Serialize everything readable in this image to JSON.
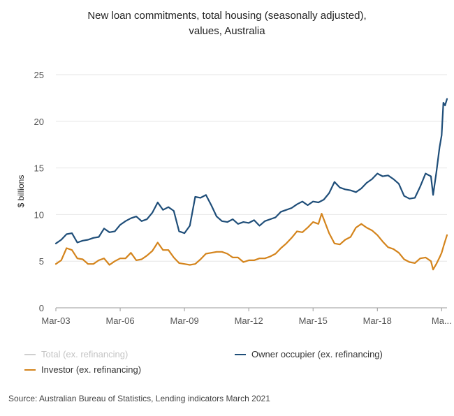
{
  "chart_data": {
    "type": "line",
    "title_line1": "New loan commitments, total housing (seasonally adjusted),",
    "title_line2": "values, Australia",
    "ylabel": "$ billions",
    "xlabel": "",
    "ylim": [
      0,
      25
    ],
    "yticks": [
      "0",
      "5",
      "10",
      "15",
      "20",
      "25"
    ],
    "xlim": [
      2003.0,
      2021.25
    ],
    "xticks": [
      {
        "x": 2003.0,
        "label": "Mar-03"
      },
      {
        "x": 2006.0,
        "label": "Mar-06"
      },
      {
        "x": 2009.0,
        "label": "Mar-09"
      },
      {
        "x": 2012.0,
        "label": "Mar-12"
      },
      {
        "x": 2015.0,
        "label": "Mar-15"
      },
      {
        "x": 2018.0,
        "label": "Mar-18"
      },
      {
        "x": 2021.0,
        "label": "Ma..."
      }
    ],
    "grid": true,
    "legend": "bottom",
    "series": [
      {
        "name": "Total (ex. refinancing)",
        "color": "#cfcfcf",
        "visible": false,
        "points": []
      },
      {
        "name": "Owner occupier (ex. refinancing)",
        "color": "#1f4e79",
        "visible": true,
        "points": [
          [
            2003.0,
            6.9
          ],
          [
            2003.25,
            7.3
          ],
          [
            2003.5,
            7.9
          ],
          [
            2003.75,
            8.0
          ],
          [
            2004.0,
            7.0
          ],
          [
            2004.25,
            7.2
          ],
          [
            2004.5,
            7.3
          ],
          [
            2004.75,
            7.5
          ],
          [
            2005.0,
            7.6
          ],
          [
            2005.25,
            8.5
          ],
          [
            2005.5,
            8.1
          ],
          [
            2005.75,
            8.2
          ],
          [
            2006.0,
            8.9
          ],
          [
            2006.25,
            9.3
          ],
          [
            2006.5,
            9.6
          ],
          [
            2006.75,
            9.8
          ],
          [
            2007.0,
            9.3
          ],
          [
            2007.25,
            9.5
          ],
          [
            2007.5,
            10.2
          ],
          [
            2007.75,
            11.3
          ],
          [
            2008.0,
            10.5
          ],
          [
            2008.25,
            10.8
          ],
          [
            2008.5,
            10.4
          ],
          [
            2008.75,
            8.2
          ],
          [
            2009.0,
            8.0
          ],
          [
            2009.25,
            8.8
          ],
          [
            2009.5,
            11.9
          ],
          [
            2009.75,
            11.8
          ],
          [
            2010.0,
            12.1
          ],
          [
            2010.25,
            11.0
          ],
          [
            2010.5,
            9.8
          ],
          [
            2010.75,
            9.3
          ],
          [
            2011.0,
            9.2
          ],
          [
            2011.25,
            9.5
          ],
          [
            2011.5,
            9.0
          ],
          [
            2011.75,
            9.2
          ],
          [
            2012.0,
            9.1
          ],
          [
            2012.25,
            9.4
          ],
          [
            2012.5,
            8.8
          ],
          [
            2012.75,
            9.3
          ],
          [
            2013.0,
            9.5
          ],
          [
            2013.25,
            9.7
          ],
          [
            2013.5,
            10.3
          ],
          [
            2013.75,
            10.5
          ],
          [
            2014.0,
            10.7
          ],
          [
            2014.25,
            11.1
          ],
          [
            2014.5,
            11.4
          ],
          [
            2014.75,
            11.0
          ],
          [
            2015.0,
            11.4
          ],
          [
            2015.25,
            11.3
          ],
          [
            2015.5,
            11.6
          ],
          [
            2015.75,
            12.3
          ],
          [
            2016.0,
            13.5
          ],
          [
            2016.25,
            12.9
          ],
          [
            2016.5,
            12.7
          ],
          [
            2016.75,
            12.6
          ],
          [
            2017.0,
            12.4
          ],
          [
            2017.25,
            12.8
          ],
          [
            2017.5,
            13.4
          ],
          [
            2017.75,
            13.8
          ],
          [
            2018.0,
            14.4
          ],
          [
            2018.25,
            14.1
          ],
          [
            2018.5,
            14.2
          ],
          [
            2018.75,
            13.8
          ],
          [
            2019.0,
            13.3
          ],
          [
            2019.25,
            12.0
          ],
          [
            2019.5,
            11.7
          ],
          [
            2019.75,
            11.8
          ],
          [
            2020.0,
            13.0
          ],
          [
            2020.25,
            14.4
          ],
          [
            2020.5,
            14.1
          ],
          [
            2020.6,
            12.1
          ],
          [
            2020.75,
            14.5
          ],
          [
            2020.9,
            17.2
          ],
          [
            2021.0,
            18.5
          ],
          [
            2021.08,
            22.0
          ],
          [
            2021.16,
            21.7
          ],
          [
            2021.25,
            22.4
          ]
        ]
      },
      {
        "name": "Investor (ex. refinancing)",
        "color": "#d4841c",
        "visible": true,
        "points": [
          [
            2003.0,
            4.7
          ],
          [
            2003.25,
            5.1
          ],
          [
            2003.5,
            6.4
          ],
          [
            2003.75,
            6.2
          ],
          [
            2004.0,
            5.3
          ],
          [
            2004.25,
            5.2
          ],
          [
            2004.5,
            4.7
          ],
          [
            2004.75,
            4.7
          ],
          [
            2005.0,
            5.1
          ],
          [
            2005.25,
            5.3
          ],
          [
            2005.5,
            4.6
          ],
          [
            2005.75,
            5.0
          ],
          [
            2006.0,
            5.3
          ],
          [
            2006.25,
            5.3
          ],
          [
            2006.5,
            5.9
          ],
          [
            2006.75,
            5.1
          ],
          [
            2007.0,
            5.2
          ],
          [
            2007.25,
            5.6
          ],
          [
            2007.5,
            6.1
          ],
          [
            2007.75,
            7.0
          ],
          [
            2008.0,
            6.2
          ],
          [
            2008.25,
            6.2
          ],
          [
            2008.5,
            5.4
          ],
          [
            2008.75,
            4.8
          ],
          [
            2009.0,
            4.7
          ],
          [
            2009.25,
            4.6
          ],
          [
            2009.5,
            4.7
          ],
          [
            2009.75,
            5.2
          ],
          [
            2010.0,
            5.8
          ],
          [
            2010.25,
            5.9
          ],
          [
            2010.5,
            6.0
          ],
          [
            2010.75,
            6.0
          ],
          [
            2011.0,
            5.8
          ],
          [
            2011.25,
            5.4
          ],
          [
            2011.5,
            5.4
          ],
          [
            2011.75,
            4.9
          ],
          [
            2012.0,
            5.1
          ],
          [
            2012.25,
            5.1
          ],
          [
            2012.5,
            5.3
          ],
          [
            2012.75,
            5.3
          ],
          [
            2013.0,
            5.5
          ],
          [
            2013.25,
            5.8
          ],
          [
            2013.5,
            6.4
          ],
          [
            2013.75,
            6.9
          ],
          [
            2014.0,
            7.5
          ],
          [
            2014.25,
            8.2
          ],
          [
            2014.5,
            8.1
          ],
          [
            2014.75,
            8.6
          ],
          [
            2015.0,
            9.2
          ],
          [
            2015.25,
            9.0
          ],
          [
            2015.4,
            10.1
          ],
          [
            2015.55,
            9.2
          ],
          [
            2015.75,
            8.0
          ],
          [
            2016.0,
            6.9
          ],
          [
            2016.25,
            6.8
          ],
          [
            2016.5,
            7.3
          ],
          [
            2016.75,
            7.6
          ],
          [
            2017.0,
            8.6
          ],
          [
            2017.25,
            9.0
          ],
          [
            2017.5,
            8.6
          ],
          [
            2017.75,
            8.3
          ],
          [
            2018.0,
            7.8
          ],
          [
            2018.25,
            7.1
          ],
          [
            2018.5,
            6.5
          ],
          [
            2018.75,
            6.3
          ],
          [
            2019.0,
            5.9
          ],
          [
            2019.25,
            5.2
          ],
          [
            2019.5,
            4.9
          ],
          [
            2019.75,
            4.8
          ],
          [
            2020.0,
            5.3
          ],
          [
            2020.25,
            5.4
          ],
          [
            2020.5,
            5.0
          ],
          [
            2020.6,
            4.1
          ],
          [
            2020.75,
            4.7
          ],
          [
            2020.9,
            5.4
          ],
          [
            2021.0,
            5.9
          ],
          [
            2021.1,
            6.7
          ],
          [
            2021.25,
            7.8
          ]
        ]
      }
    ]
  },
  "source": "Source: Australian Bureau of Statistics, Lending indicators March 2021"
}
